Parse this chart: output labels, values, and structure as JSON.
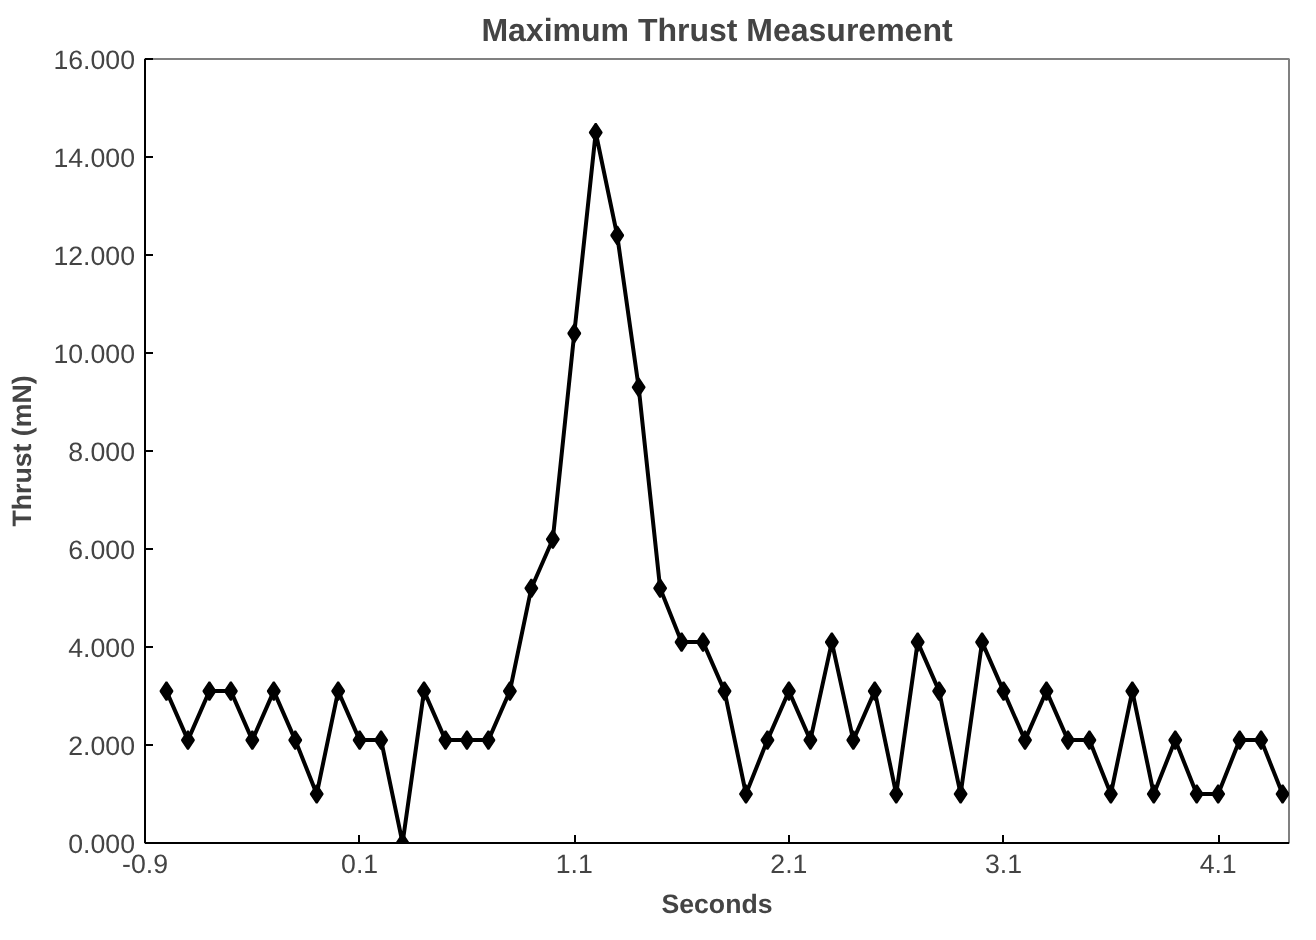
{
  "chart_data": {
    "type": "line",
    "title": "Maximum Thrust Measurement",
    "xlabel": "Seconds",
    "ylabel": "Thrust (mN)",
    "x": [
      -0.8,
      -0.7,
      -0.6,
      -0.5,
      -0.4,
      -0.3,
      -0.2,
      -0.1,
      0.0,
      0.1,
      0.2,
      0.3,
      0.4,
      0.5,
      0.6,
      0.7,
      0.8,
      0.9,
      1.0,
      1.1,
      1.2,
      1.3,
      1.4,
      1.5,
      1.6,
      1.7,
      1.8,
      1.9,
      2.0,
      2.1,
      2.2,
      2.3,
      2.4,
      2.5,
      2.6,
      2.7,
      2.8,
      2.9,
      3.0,
      3.1,
      3.2,
      3.3,
      3.4,
      3.5,
      3.6,
      3.7,
      3.8,
      3.9,
      4.0,
      4.1,
      4.2,
      4.3,
      4.4
    ],
    "series": [
      {
        "color": "#000000",
        "values": [
          3.1,
          2.1,
          3.1,
          3.1,
          2.1,
          3.1,
          2.1,
          1.0,
          3.1,
          2.1,
          2.1,
          0.0,
          3.1,
          2.1,
          2.1,
          2.1,
          3.1,
          5.2,
          6.2,
          10.4,
          14.5,
          12.4,
          9.3,
          5.2,
          4.1,
          4.1,
          3.1,
          1.0,
          2.1,
          3.1,
          2.1,
          4.1,
          2.1,
          3.1,
          1.0,
          4.1,
          3.1,
          1.0,
          4.1,
          3.1,
          2.1,
          3.1,
          2.1,
          2.1,
          1.0,
          3.1,
          1.0,
          2.1,
          1.0,
          1.0,
          2.1,
          2.1,
          1.0
        ]
      }
    ],
    "xlim": [
      -0.9,
      4.43
    ],
    "xticks": [
      -0.9,
      0.1,
      1.1,
      2.1,
      3.1,
      4.1
    ],
    "ylim": [
      0,
      16
    ],
    "yticks": [
      {
        "value": 0,
        "label": "0.000"
      },
      {
        "value": 2,
        "label": "2.000"
      },
      {
        "value": 4,
        "label": "4.000"
      },
      {
        "value": 6,
        "label": "6.000"
      },
      {
        "value": 8,
        "label": "8.000"
      },
      {
        "value": 10,
        "label": "10.000"
      },
      {
        "value": 12,
        "label": "12.000"
      },
      {
        "value": 14,
        "label": "14.000"
      },
      {
        "value": 16,
        "label": "16.000"
      }
    ],
    "marker": "diamond",
    "line_style": "solid",
    "grid": false
  }
}
